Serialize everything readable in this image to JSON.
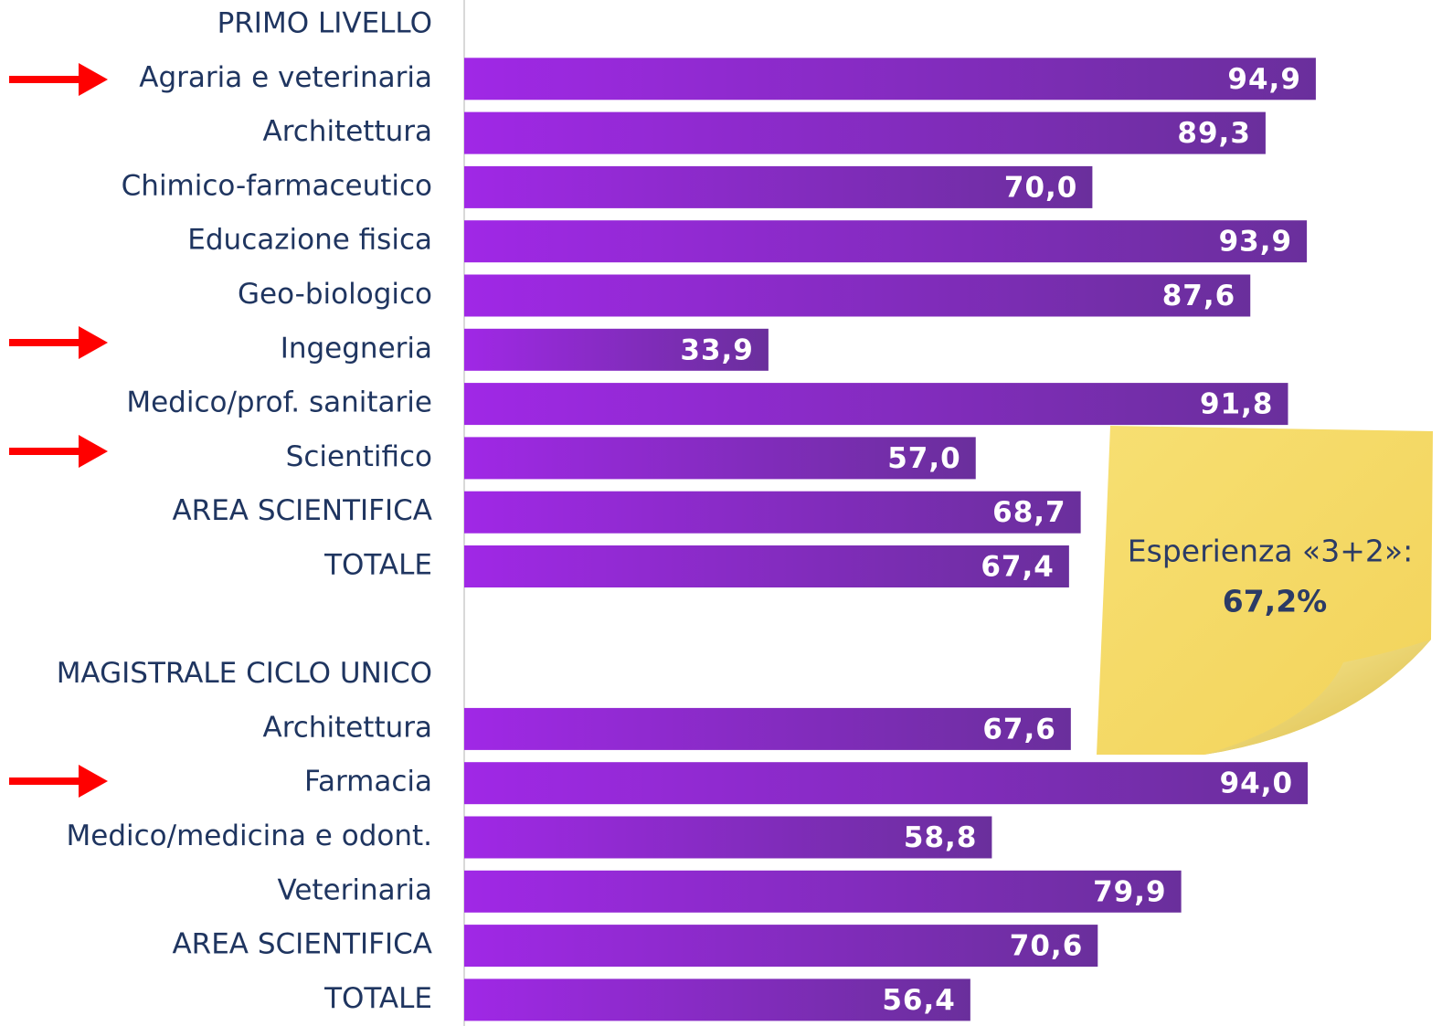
{
  "chart_data": {
    "type": "bar",
    "orientation": "horizontal",
    "categories": [
      "PRIMO LIVELLO",
      "Agraria e veterinaria",
      "Architettura",
      "Chimico-farmaceutico",
      "Educazione fisica",
      "Geo-biologico",
      "Ingegneria",
      "Medico/prof. sanitarie",
      "Scientifico",
      "AREA SCIENTIFICA",
      "TOTALE",
      null,
      "MAGISTRALE CICLO UNICO",
      "Architettura",
      "Farmacia",
      "Medico/medicina e odont.",
      "Veterinaria",
      "AREA SCIENTIFICA",
      "TOTALE"
    ],
    "values": [
      null,
      94.9,
      89.3,
      70.0,
      93.9,
      87.6,
      33.9,
      91.8,
      57.0,
      68.7,
      67.4,
      null,
      null,
      67.6,
      94.0,
      58.8,
      79.9,
      70.6,
      56.4
    ],
    "value_labels": [
      null,
      "94,9",
      "89,3",
      "70,0",
      "93,9",
      "87,6",
      "33,9",
      "91,8",
      "57,0",
      "68,7",
      "67,4",
      null,
      null,
      "67,6",
      "94,0",
      "58,8",
      "79,9",
      "70,6",
      "56,4"
    ],
    "color": "#7b2fbf",
    "xlim": [
      0,
      100
    ],
    "annotations": [
      "Esperienza «3+2»:",
      "67,2%"
    ]
  }
}
